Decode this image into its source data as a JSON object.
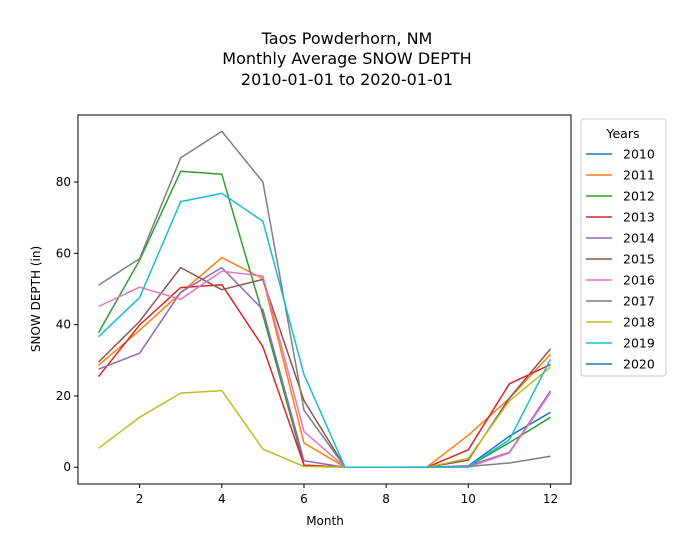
{
  "chart_data": {
    "type": "line",
    "title_lines": [
      "Taos Powderhorn, NM",
      "Monthly Average SNOW DEPTH",
      "2010-01-01 to 2020-01-01"
    ],
    "xlabel": "Month",
    "ylabel": "SNOW DEPTH (in)",
    "xlim": [
      0.5,
      12.5
    ],
    "ylim": [
      -4.7,
      98.8
    ],
    "x_ticks": [
      2,
      4,
      6,
      8,
      10,
      12
    ],
    "y_ticks": [
      0,
      20,
      40,
      60,
      80
    ],
    "grid": false,
    "legend": {
      "title": "Years",
      "placement": "outside-right"
    },
    "x": [
      1,
      2,
      3,
      4,
      5,
      6,
      7,
      8,
      9,
      10,
      11,
      12
    ],
    "series": [
      {
        "name": "2010",
        "color": "#1f77b4",
        "values": [
          null,
          null,
          null,
          null,
          null,
          null,
          null,
          null,
          null,
          0.4,
          8.7,
          15.4
        ]
      },
      {
        "name": "2011",
        "color": "#ff7f0e",
        "values": [
          28.6,
          38.4,
          48.9,
          58.8,
          52.9,
          6.8,
          0,
          0,
          0.1,
          9.0,
          19.3,
          31.7
        ]
      },
      {
        "name": "2012",
        "color": "#2ca02c",
        "values": [
          37.7,
          58.1,
          83.0,
          82.2,
          42.7,
          0.6,
          0,
          0,
          0,
          0.2,
          6.9,
          14.0
        ]
      },
      {
        "name": "2013",
        "color": "#d62728",
        "values": [
          25.4,
          39.9,
          50.4,
          51.2,
          33.8,
          0.6,
          0,
          0,
          0,
          4.9,
          23.4,
          28.8
        ]
      },
      {
        "name": "2014",
        "color": "#9467bd",
        "values": [
          27.5,
          32.0,
          49.1,
          56.0,
          44.2,
          1.8,
          0,
          0,
          0,
          0.4,
          4.2,
          21.4
        ]
      },
      {
        "name": "2015",
        "color": "#8c564b",
        "values": [
          29.5,
          40.9,
          56.0,
          49.8,
          52.7,
          18.7,
          0,
          0,
          0,
          2.0,
          19.4,
          33.2
        ]
      },
      {
        "name": "2016",
        "color": "#e377c2",
        "values": [
          45.1,
          50.5,
          47.1,
          55.0,
          53.6,
          10.0,
          0,
          0,
          0,
          0,
          4.0,
          20.9
        ]
      },
      {
        "name": "2017",
        "color": "#7f7f7f",
        "values": [
          51.1,
          58.5,
          86.8,
          94.2,
          80.0,
          16.0,
          0,
          0,
          0,
          0.2,
          1.2,
          3.1
        ]
      },
      {
        "name": "2018",
        "color": "#bcbd22",
        "values": [
          5.3,
          14.0,
          20.8,
          21.5,
          5.1,
          0.2,
          0,
          0,
          0,
          2.5,
          18.6,
          28.1
        ]
      },
      {
        "name": "2019",
        "color": "#17becf",
        "values": [
          36.6,
          47.6,
          74.5,
          76.8,
          69.0,
          26.0,
          0,
          0,
          0,
          0.2,
          7.7,
          30.3
        ]
      },
      {
        "name": "2020",
        "color": "#1f77b4",
        "values": [
          null,
          null,
          null,
          null,
          null,
          null,
          null,
          null,
          null,
          null,
          null,
          null
        ]
      }
    ]
  }
}
